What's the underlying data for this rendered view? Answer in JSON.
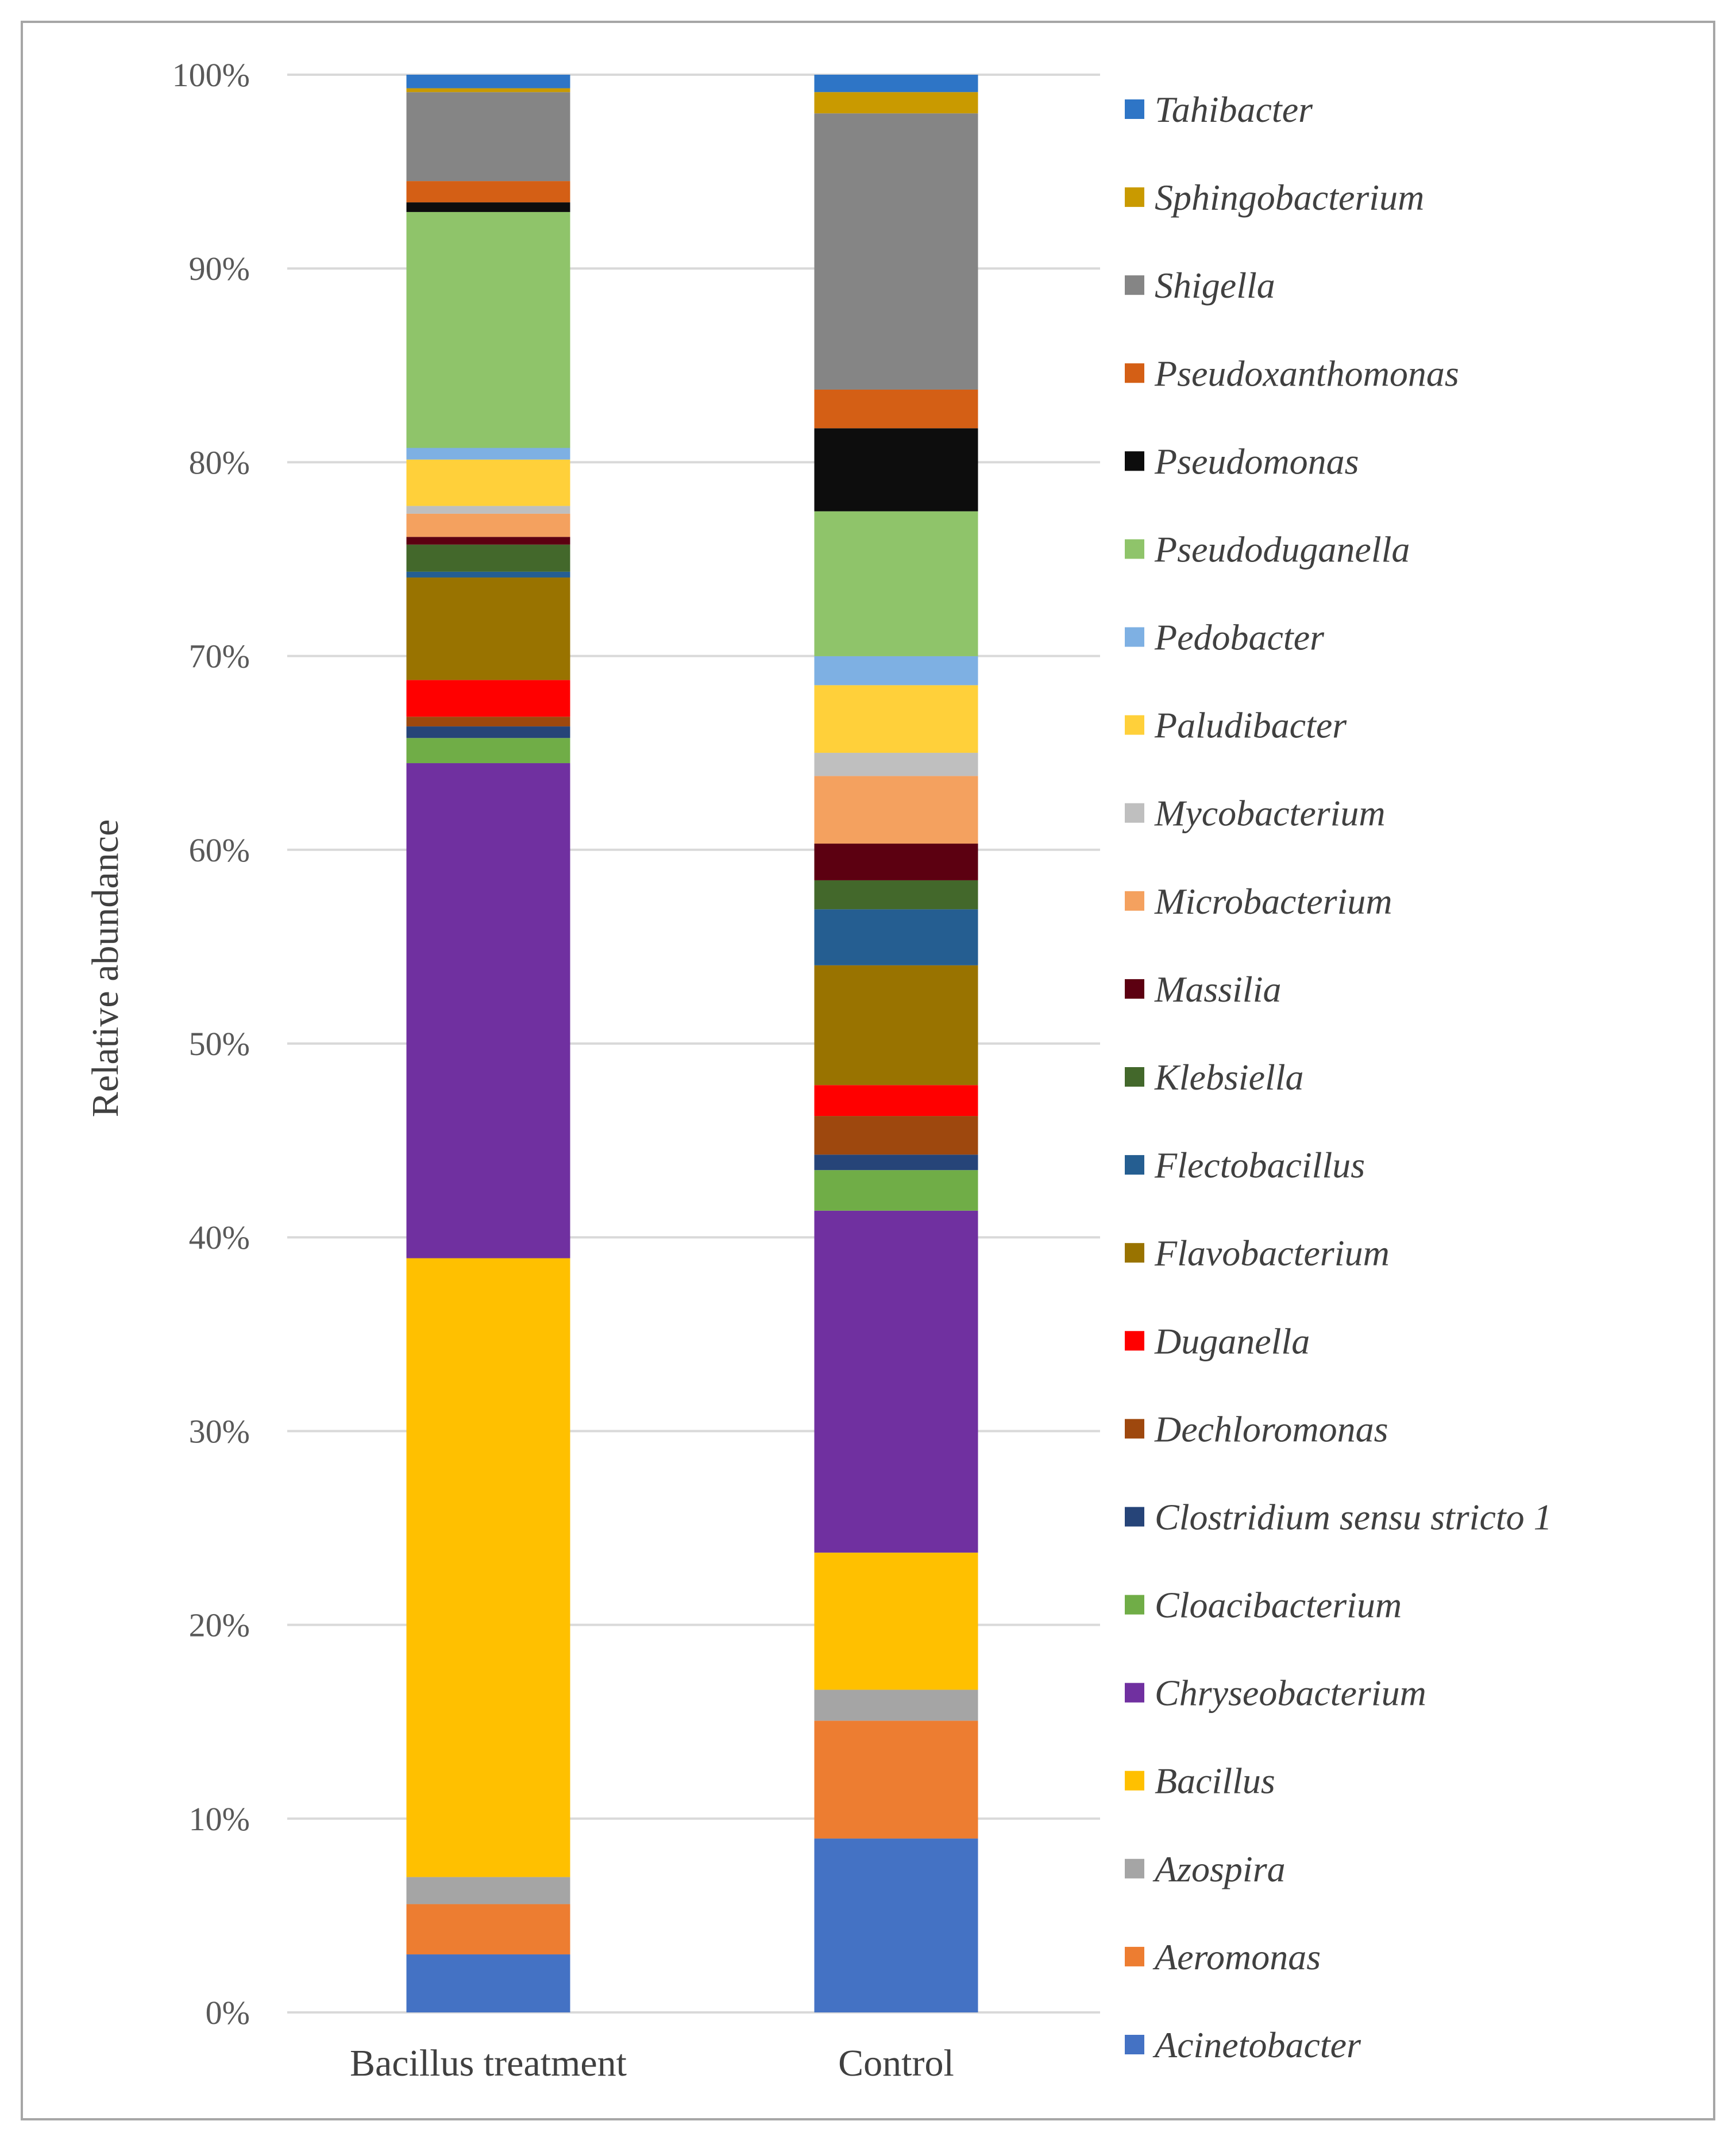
{
  "chart_data": {
    "type": "bar",
    "stacked": true,
    "percent": true,
    "ylabel": "Relative abundance",
    "xlabel": "",
    "ylim": [
      0,
      100
    ],
    "yticks": [
      "0%",
      "10%",
      "20%",
      "30%",
      "40%",
      "50%",
      "60%",
      "70%",
      "80%",
      "90%",
      "100%"
    ],
    "grid": true,
    "legend_position": "right",
    "categories": [
      "Bacillus treatment",
      "Control"
    ],
    "series": [
      {
        "name": "Acinetobacter",
        "color": "#4472C4",
        "values": [
          3.0,
          9.0
        ]
      },
      {
        "name": "Aeromonas",
        "color": "#ED7D31",
        "values": [
          2.6,
          6.1
        ]
      },
      {
        "name": "Azospira",
        "color": "#A5A5A5",
        "values": [
          1.4,
          1.6
        ]
      },
      {
        "name": "Bacillus",
        "color": "#FFC000",
        "values": [
          32.0,
          7.1
        ]
      },
      {
        "name": "Chryseobacterium",
        "color": "#7030A0",
        "values": [
          25.6,
          17.7
        ]
      },
      {
        "name": "Cloacibacterium",
        "color": "#70AD47",
        "values": [
          1.3,
          2.1
        ]
      },
      {
        "name": "Clostridium sensu stricto 1",
        "color": "#264478",
        "values": [
          0.6,
          0.8
        ]
      },
      {
        "name": "Dechloromonas",
        "color": "#9E480E",
        "values": [
          0.5,
          2.0
        ]
      },
      {
        "name": "Duganella",
        "color": "#FF0000",
        "values": [
          1.9,
          1.6
        ]
      },
      {
        "name": "Flavobacterium",
        "color": "#997300",
        "values": [
          5.3,
          6.2
        ]
      },
      {
        "name": "Flectobacillus",
        "color": "#255E91",
        "values": [
          0.3,
          2.9
        ]
      },
      {
        "name": "Klebsiella",
        "color": "#43682B",
        "values": [
          1.4,
          1.5
        ]
      },
      {
        "name": "Massilia",
        "color": "#5C0011",
        "values": [
          0.4,
          1.9
        ]
      },
      {
        "name": "Microbacterium",
        "color": "#F4A15F",
        "values": [
          1.2,
          3.5
        ]
      },
      {
        "name": "Mycobacterium",
        "color": "#BFBFBF",
        "values": [
          0.4,
          1.2
        ]
      },
      {
        "name": "Paludibacter",
        "color": "#FFD03A",
        "values": [
          2.4,
          3.5
        ]
      },
      {
        "name": "Pedobacter",
        "color": "#7EB0E3",
        "values": [
          0.6,
          1.5
        ]
      },
      {
        "name": "Pseudoduganella",
        "color": "#8FC46A",
        "values": [
          12.2,
          7.5
        ]
      },
      {
        "name": "Pseudomonas",
        "color": "#0D0D0D",
        "values": [
          0.5,
          4.3
        ]
      },
      {
        "name": "Pseudoxanthomonas",
        "color": "#D45F15",
        "values": [
          1.1,
          2.0
        ]
      },
      {
        "name": "Shigella",
        "color": "#858585",
        "values": [
          4.6,
          14.3
        ]
      },
      {
        "name": "Sphingobacterium",
        "color": "#C99A00",
        "values": [
          0.2,
          1.1
        ]
      },
      {
        "name": "Tahibacter",
        "color": "#2E75C6",
        "values": [
          0.7,
          0.9
        ]
      }
    ]
  }
}
